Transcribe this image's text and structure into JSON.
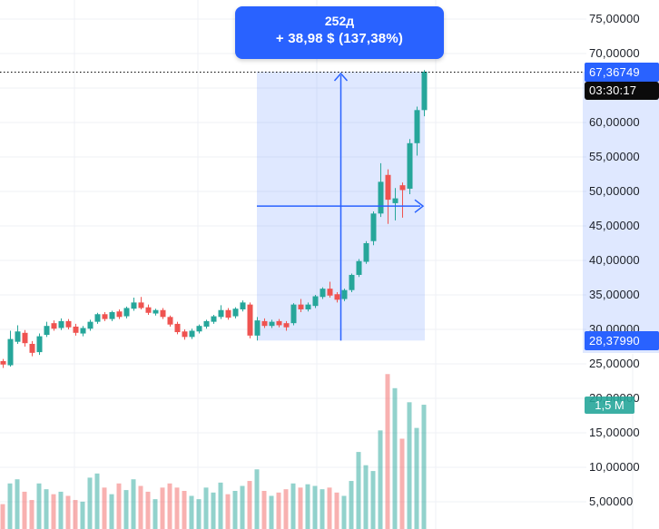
{
  "measure_tooltip": {
    "bars_label": "252д",
    "change_label": "+ 38,98 $ (137,38%)"
  },
  "price_axis": {
    "ticks": [
      {
        "price": 75,
        "label": "75,00000"
      },
      {
        "price": 70,
        "label": "70,00000"
      },
      {
        "price": 60,
        "label": "60,00000"
      },
      {
        "price": 55,
        "label": "55,00000"
      },
      {
        "price": 50,
        "label": "50,00000"
      },
      {
        "price": 45,
        "label": "45,00000"
      },
      {
        "price": 40,
        "label": "40,00000"
      },
      {
        "price": 35,
        "label": "35,00000"
      },
      {
        "price": 30,
        "label": "30,00000"
      },
      {
        "price": 25,
        "label": "25,00000"
      },
      {
        "price": 20,
        "label": "20,00000"
      },
      {
        "price": 15,
        "label": "15,00000"
      },
      {
        "price": 10,
        "label": "10,00000"
      },
      {
        "price": 5,
        "label": "5,00000"
      }
    ],
    "current_price_badge": {
      "text": "67,36749"
    },
    "countdown_badge": {
      "text": "03:30:17"
    },
    "measure_low_badge": {
      "text": "28,37990"
    },
    "volume_badge": {
      "text": "1,5 M"
    }
  },
  "colors": {
    "accent": "#2962ff",
    "up": "#26a69a",
    "down": "#ef5350",
    "volume_up": "rgba(38,166,154,0.5)",
    "volume_down": "rgba(239,83,80,0.45)",
    "region_fill": "rgba(41,98,255,0.15)",
    "grid": "#eff1f6",
    "countdown_bg": "#0b0b0b",
    "volume_badge_bg": "rgba(38,166,154,0.9)",
    "price_line": "#000000"
  },
  "chart_data": {
    "type": "candlestick",
    "note": "candles are [open, high, low, close, volume_millions], oldest to newest",
    "last_price": 67.36749,
    "countdown": "03:30:17",
    "last_volume_label": "1,5 M",
    "y_tick_step": 5,
    "visible_price_range": [
      5,
      75
    ],
    "candles": [
      [
        25.4,
        25.7,
        24.4,
        24.9,
        0.3
      ],
      [
        24.8,
        29.8,
        24.6,
        28.6,
        0.55
      ],
      [
        28.2,
        30.6,
        27.9,
        29.7,
        0.6
      ],
      [
        29.5,
        29.9,
        27.5,
        28.0,
        0.45
      ],
      [
        27.9,
        28.3,
        26.1,
        26.6,
        0.35
      ],
      [
        26.7,
        29.4,
        26.3,
        29.0,
        0.55
      ],
      [
        29.2,
        31.1,
        28.9,
        30.5,
        0.48
      ],
      [
        30.9,
        31.3,
        29.8,
        30.1,
        0.42
      ],
      [
        30.2,
        31.6,
        29.9,
        31.2,
        0.45
      ],
      [
        31.2,
        31.5,
        30.0,
        30.3,
        0.4
      ],
      [
        30.4,
        30.8,
        29.1,
        29.5,
        0.35
      ],
      [
        29.4,
        30.5,
        29.0,
        30.2,
        0.33
      ],
      [
        30.1,
        31.4,
        29.8,
        31.1,
        0.62
      ],
      [
        31.1,
        32.4,
        30.8,
        32.2,
        0.67
      ],
      [
        32.2,
        32.5,
        31.2,
        31.5,
        0.5
      ],
      [
        31.5,
        32.7,
        31.2,
        32.5,
        0.42
      ],
      [
        32.6,
        32.9,
        31.5,
        31.8,
        0.55
      ],
      [
        31.9,
        33.3,
        31.6,
        33.1,
        0.47
      ],
      [
        33.0,
        34.6,
        32.7,
        33.9,
        0.6
      ],
      [
        33.9,
        34.7,
        32.9,
        33.1,
        0.52
      ],
      [
        33.2,
        33.6,
        32.1,
        32.4,
        0.45
      ],
      [
        32.3,
        33.0,
        32.0,
        32.8,
        0.36
      ],
      [
        32.8,
        33.1,
        31.5,
        31.8,
        0.5
      ],
      [
        31.8,
        32.0,
        30.4,
        30.7,
        0.55
      ],
      [
        30.8,
        31.1,
        29.3,
        29.6,
        0.5
      ],
      [
        29.7,
        30.0,
        28.5,
        28.9,
        0.46
      ],
      [
        28.9,
        30.1,
        28.6,
        29.8,
        0.4
      ],
      [
        29.7,
        30.7,
        29.4,
        30.5,
        0.36
      ],
      [
        30.4,
        31.4,
        30.1,
        31.2,
        0.5
      ],
      [
        31.1,
        32.1,
        30.8,
        31.9,
        0.44
      ],
      [
        31.8,
        33.5,
        31.5,
        32.8,
        0.56
      ],
      [
        32.8,
        33.1,
        31.4,
        31.7,
        0.42
      ],
      [
        31.9,
        33.2,
        31.6,
        33.0,
        0.46
      ],
      [
        32.9,
        34.2,
        32.6,
        33.9,
        0.52
      ],
      [
        33.6,
        33.9,
        28.7,
        29.1,
        0.58
      ],
      [
        29.1,
        31.8,
        28.38,
        31.3,
        0.72
      ],
      [
        31.2,
        31.6,
        30.2,
        30.5,
        0.46
      ],
      [
        30.5,
        31.4,
        30.2,
        31.1,
        0.4
      ],
      [
        31.2,
        31.5,
        30.3,
        30.6,
        0.44
      ],
      [
        30.9,
        31.2,
        29.8,
        30.3,
        0.48
      ],
      [
        30.9,
        33.8,
        30.6,
        33.6,
        0.55
      ],
      [
        33.6,
        34.4,
        32.5,
        32.9,
        0.5
      ],
      [
        32.9,
        33.9,
        32.6,
        33.6,
        0.54
      ],
      [
        33.4,
        35.0,
        33.1,
        34.8,
        0.52
      ],
      [
        34.7,
        36.1,
        34.4,
        35.9,
        0.48
      ],
      [
        35.9,
        36.9,
        34.6,
        34.9,
        0.5
      ],
      [
        35.1,
        35.4,
        33.9,
        34.3,
        0.44
      ],
      [
        34.4,
        35.9,
        34.1,
        35.7,
        0.4
      ],
      [
        35.7,
        38.1,
        35.4,
        37.9,
        0.58
      ],
      [
        37.9,
        40.2,
        37.6,
        39.9,
        0.93
      ],
      [
        39.8,
        42.8,
        39.5,
        42.5,
        0.77
      ],
      [
        42.8,
        47.1,
        42.2,
        46.8,
        0.7
      ],
      [
        46.8,
        54.1,
        46.3,
        51.4,
        1.19
      ],
      [
        52.4,
        53.2,
        45.3,
        48.8,
        1.87
      ],
      [
        48.3,
        50.5,
        45.8,
        49.0,
        1.7
      ],
      [
        50.9,
        51.3,
        46.2,
        50.2,
        1.09
      ],
      [
        50.4,
        57.6,
        49.6,
        57.0,
        1.53
      ],
      [
        57.0,
        62.3,
        55.2,
        61.8,
        1.22
      ],
      [
        61.8,
        67.6,
        60.9,
        67.37,
        1.5
      ]
    ],
    "measure": {
      "start_index": 35,
      "end_index": 58,
      "start_price": 28.3799,
      "end_price": 67.36749,
      "bars_label": "252д",
      "change_label": "+ 38,98 $ (137,38%)"
    }
  }
}
